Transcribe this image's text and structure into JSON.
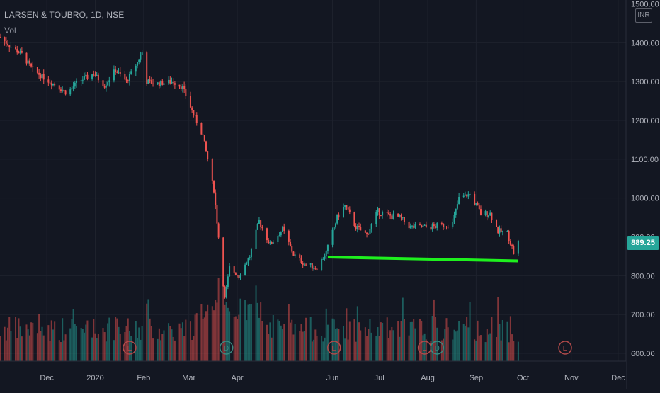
{
  "header": {
    "title": "LARSEN & TOUBRO, 1D, NSE",
    "volume_label": "Vol",
    "currency": "INR"
  },
  "price_badge": "889.25",
  "colors": {
    "background": "#131722",
    "up": "#26a69a",
    "down": "#ef5350",
    "support_line": "#1ef01e",
    "earnings": "#b34a4a",
    "dividend": "#3a8a80",
    "axis_text": "#b2b5be"
  },
  "chart_data": {
    "type": "candlestick",
    "title": "LARSEN & TOUBRO, 1D, NSE",
    "ylim": [
      580,
      1510
    ],
    "y_ticks": [
      "600.00",
      "700.00",
      "800.00",
      "900.00",
      "1000.00",
      "1100.00",
      "1200.00",
      "1300.00",
      "1400.00",
      "1500.00"
    ],
    "y_tick_values": [
      600,
      700,
      800,
      900,
      1000,
      1100,
      1200,
      1300,
      1400,
      1500
    ],
    "x_ticks": [
      {
        "label": "Dec",
        "date": "2019-12-01"
      },
      {
        "label": "2020",
        "date": "2020-01-01"
      },
      {
        "label": "Feb",
        "date": "2020-02-01"
      },
      {
        "label": "Mar",
        "date": "2020-03-01"
      },
      {
        "label": "Apr",
        "date": "2020-04-01"
      },
      {
        "label": "Jun",
        "date": "2020-06-01"
      },
      {
        "label": "Jul",
        "date": "2020-07-01"
      },
      {
        "label": "Aug",
        "date": "2020-08-01"
      },
      {
        "label": "Sep",
        "date": "2020-09-01"
      },
      {
        "label": "Oct",
        "date": "2020-10-01"
      },
      {
        "label": "Nov",
        "date": "2020-11-01"
      },
      {
        "label": "Dec",
        "date": "2020-12-01"
      }
    ],
    "x_range": [
      "2019-11-01",
      "2020-12-06"
    ],
    "close_anchors": [
      [
        "2019-11-01",
        1415
      ],
      [
        "2019-11-08",
        1390
      ],
      [
        "2019-11-15",
        1370
      ],
      [
        "2019-11-22",
        1330
      ],
      [
        "2019-12-01",
        1305
      ],
      [
        "2019-12-07",
        1290
      ],
      [
        "2019-12-14",
        1270
      ],
      [
        "2019-12-21",
        1300
      ],
      [
        "2019-12-31",
        1320
      ],
      [
        "2020-01-07",
        1290
      ],
      [
        "2020-01-14",
        1330
      ],
      [
        "2020-01-21",
        1300
      ],
      [
        "2020-01-28",
        1350
      ],
      [
        "2020-01-31",
        1375
      ],
      [
        "2020-02-03",
        1300
      ],
      [
        "2020-02-10",
        1295
      ],
      [
        "2020-02-20",
        1300
      ],
      [
        "2020-02-26",
        1285
      ],
      [
        "2020-03-03",
        1225
      ],
      [
        "2020-03-10",
        1160
      ],
      [
        "2020-03-17",
        1020
      ],
      [
        "2020-03-20",
        900
      ],
      [
        "2020-03-24",
        740
      ],
      [
        "2020-03-27",
        820
      ],
      [
        "2020-04-02",
        800
      ],
      [
        "2020-04-09",
        850
      ],
      [
        "2020-04-15",
        940
      ],
      [
        "2020-04-22",
        880
      ],
      [
        "2020-04-30",
        920
      ],
      [
        "2020-05-07",
        855
      ],
      [
        "2020-05-14",
        830
      ],
      [
        "2020-05-22",
        820
      ],
      [
        "2020-05-28",
        860
      ],
      [
        "2020-06-04",
        950
      ],
      [
        "2020-06-09",
        980
      ],
      [
        "2020-06-16",
        925
      ],
      [
        "2020-06-23",
        905
      ],
      [
        "2020-06-30",
        965
      ],
      [
        "2020-07-07",
        955
      ],
      [
        "2020-07-14",
        950
      ],
      [
        "2020-07-21",
        925
      ],
      [
        "2020-08-03",
        925
      ],
      [
        "2020-08-10",
        930
      ],
      [
        "2020-08-17",
        935
      ],
      [
        "2020-08-21",
        1000
      ],
      [
        "2020-08-28",
        1010
      ],
      [
        "2020-09-04",
        960
      ],
      [
        "2020-09-10",
        960
      ],
      [
        "2020-09-15",
        915
      ],
      [
        "2020-09-21",
        910
      ],
      [
        "2020-09-25",
        860
      ],
      [
        "2020-09-28",
        889.25
      ]
    ],
    "support_line": {
      "from": [
        "2020-05-29",
        848
      ],
      "to": [
        "2020-09-28",
        838
      ]
    },
    "events": [
      {
        "type": "earnings",
        "label": "E",
        "date": "2020-01-23"
      },
      {
        "type": "dividend",
        "label": "D",
        "date": "2020-03-25"
      },
      {
        "type": "earnings",
        "label": "E",
        "date": "2020-06-02"
      },
      {
        "type": "earnings",
        "label": "E",
        "date": "2020-07-30"
      },
      {
        "type": "dividend",
        "label": "D",
        "date": "2020-08-07"
      },
      {
        "type": "earnings",
        "label": "E",
        "date": "2020-10-28"
      }
    ],
    "last_price": 889.25
  }
}
